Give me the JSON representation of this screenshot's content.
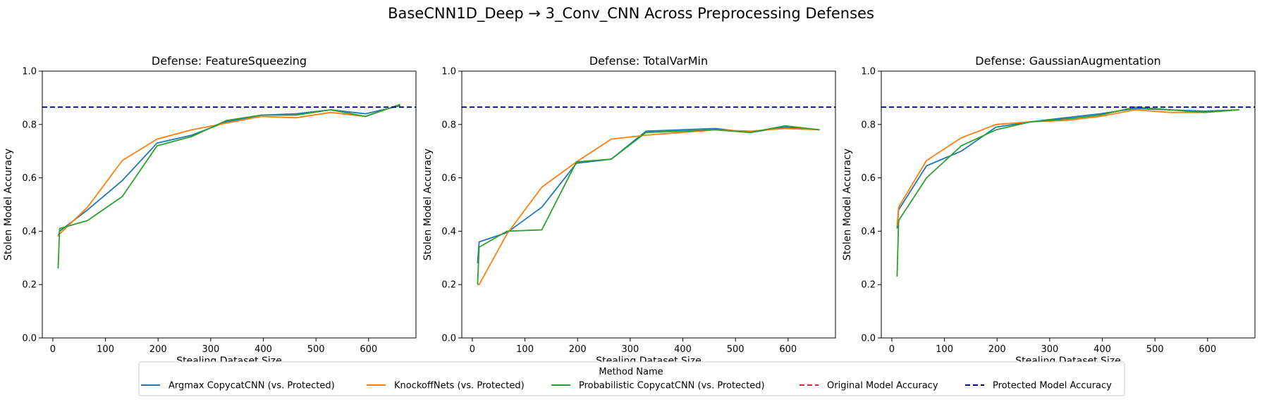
{
  "suptitle": "BaseCNN1D_Deep → 3_Conv_CNN Across Preprocessing Defenses",
  "colors": {
    "Argmax CopycatCNN (vs. Protected)": "#1f77b4",
    "KnockoffNets (vs. Protected)": "#ff7f0e",
    "Probabilistic CopycatCNN (vs. Protected)": "#2ca02c",
    "Original Model Accuracy": "#d62728",
    "Protected Model Accuracy": "#00008b"
  },
  "legend": {
    "title": "Method Name",
    "placement": "bottom-center",
    "entries": [
      {
        "label": "Argmax CopycatCNN (vs. Protected)",
        "style": "solid"
      },
      {
        "label": "KnockoffNets (vs. Protected)",
        "style": "solid"
      },
      {
        "label": "Probabilistic CopycatCNN (vs. Protected)",
        "style": "solid"
      },
      {
        "label": "Original Model Accuracy",
        "style": "dashed"
      },
      {
        "label": "Protected Model Accuracy",
        "style": "dashed"
      }
    ]
  },
  "chart_data": [
    {
      "type": "line",
      "title": "Defense: FeatureSqueezing",
      "xlabel": "Stealing Dataset Size",
      "ylabel": "Stolen Model Accuracy",
      "xlim": [
        -20,
        690
      ],
      "ylim": [
        0,
        1.0
      ],
      "xticks": [
        0,
        100,
        200,
        300,
        400,
        500,
        600
      ],
      "yticks": [
        0.0,
        0.2,
        0.4,
        0.6,
        0.8,
        1.0
      ],
      "grid": false,
      "series": [
        {
          "name": "Argmax CopycatCNN (vs. Protected)",
          "x": [
            10,
            13,
            66,
            132,
            198,
            264,
            330,
            396,
            462,
            528,
            594,
            660
          ],
          "y": [
            0.38,
            0.4,
            0.48,
            0.59,
            0.73,
            0.76,
            0.81,
            0.835,
            0.84,
            0.855,
            0.84,
            0.87
          ]
        },
        {
          "name": "KnockoffNets (vs. Protected)",
          "x": [
            10,
            13,
            66,
            132,
            198,
            264,
            330,
            396,
            462,
            528,
            594,
            660
          ],
          "y": [
            0.38,
            0.39,
            0.49,
            0.665,
            0.745,
            0.78,
            0.805,
            0.83,
            0.825,
            0.845,
            0.83,
            0.875
          ]
        },
        {
          "name": "Probabilistic CopycatCNN (vs. Protected)",
          "x": [
            10,
            13,
            66,
            132,
            198,
            264,
            330,
            396,
            462,
            528,
            594,
            660
          ],
          "y": [
            0.26,
            0.41,
            0.44,
            0.53,
            0.72,
            0.755,
            0.815,
            0.835,
            0.835,
            0.855,
            0.83,
            0.875
          ]
        }
      ],
      "hlines": [
        {
          "name": "Protected Model Accuracy",
          "y": 0.865
        }
      ]
    },
    {
      "type": "line",
      "title": "Defense: TotalVarMin",
      "xlabel": "Stealing Dataset Size",
      "ylabel": "Stolen Model Accuracy",
      "xlim": [
        -20,
        690
      ],
      "ylim": [
        0,
        1.0
      ],
      "xticks": [
        0,
        100,
        200,
        300,
        400,
        500,
        600
      ],
      "yticks": [
        0.0,
        0.2,
        0.4,
        0.6,
        0.8,
        1.0
      ],
      "grid": false,
      "series": [
        {
          "name": "Argmax CopycatCNN (vs. Protected)",
          "x": [
            10,
            13,
            66,
            132,
            198,
            264,
            330,
            396,
            462,
            528,
            594,
            660
          ],
          "y": [
            0.28,
            0.36,
            0.395,
            0.49,
            0.655,
            0.67,
            0.775,
            0.78,
            0.785,
            0.77,
            0.79,
            0.78
          ]
        },
        {
          "name": "KnockoffNets (vs. Protected)",
          "x": [
            10,
            13,
            66,
            132,
            198,
            264,
            330,
            396,
            462,
            528,
            594,
            660
          ],
          "y": [
            0.2,
            0.2,
            0.39,
            0.565,
            0.66,
            0.745,
            0.76,
            0.77,
            0.78,
            0.775,
            0.785,
            0.78
          ]
        },
        {
          "name": "Probabilistic CopycatCNN (vs. Protected)",
          "x": [
            10,
            13,
            66,
            132,
            198,
            264,
            330,
            396,
            462,
            528,
            594,
            660
          ],
          "y": [
            0.2,
            0.34,
            0.4,
            0.405,
            0.66,
            0.67,
            0.77,
            0.775,
            0.78,
            0.77,
            0.795,
            0.78
          ]
        }
      ],
      "hlines": [
        {
          "name": "Protected Model Accuracy",
          "y": 0.865
        }
      ]
    },
    {
      "type": "line",
      "title": "Defense: GaussianAugmentation",
      "xlabel": "Stealing Dataset Size",
      "ylabel": "Stolen Model Accuracy",
      "xlim": [
        -20,
        690
      ],
      "ylim": [
        0,
        1.0
      ],
      "xticks": [
        0,
        100,
        200,
        300,
        400,
        500,
        600
      ],
      "yticks": [
        0.0,
        0.2,
        0.4,
        0.6,
        0.8,
        1.0
      ],
      "grid": false,
      "series": [
        {
          "name": "Argmax CopycatCNN (vs. Protected)",
          "x": [
            10,
            13,
            66,
            132,
            198,
            264,
            330,
            396,
            462,
            528,
            594,
            660
          ],
          "y": [
            0.41,
            0.48,
            0.645,
            0.7,
            0.79,
            0.81,
            0.825,
            0.84,
            0.86,
            0.855,
            0.85,
            0.855
          ]
        },
        {
          "name": "KnockoffNets (vs. Protected)",
          "x": [
            10,
            13,
            66,
            132,
            198,
            264,
            330,
            396,
            462,
            528,
            594,
            660
          ],
          "y": [
            0.42,
            0.49,
            0.665,
            0.75,
            0.8,
            0.81,
            0.815,
            0.83,
            0.855,
            0.845,
            0.845,
            0.855
          ]
        },
        {
          "name": "Probabilistic CopycatCNN (vs. Protected)",
          "x": [
            10,
            13,
            66,
            132,
            198,
            264,
            330,
            396,
            462,
            528,
            594,
            660
          ],
          "y": [
            0.23,
            0.44,
            0.6,
            0.72,
            0.78,
            0.81,
            0.82,
            0.835,
            0.865,
            0.855,
            0.845,
            0.855
          ]
        }
      ],
      "hlines": [
        {
          "name": "Protected Model Accuracy",
          "y": 0.865
        }
      ]
    }
  ]
}
